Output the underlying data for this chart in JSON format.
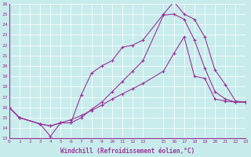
{
  "xlabel": "Windchill (Refroidissement éolien,°C)",
  "background_color": "#c8ecec",
  "line_color": "#993399",
  "grid_color": "#ffffff",
  "xmin": 0,
  "xmax": 23,
  "ymin": 13,
  "ymax": 26,
  "xticks": [
    0,
    1,
    2,
    3,
    4,
    5,
    6,
    7,
    8,
    9,
    10,
    11,
    12,
    13,
    15,
    16,
    17,
    18,
    19,
    20,
    21,
    22,
    23
  ],
  "yticks": [
    13,
    14,
    15,
    16,
    17,
    18,
    19,
    20,
    21,
    22,
    23,
    24,
    25,
    26
  ],
  "curve1_x": [
    0,
    1,
    3,
    4,
    5,
    6,
    7,
    8,
    9,
    10,
    11,
    12,
    13,
    15,
    16,
    17,
    18,
    19,
    20,
    21,
    22,
    23
  ],
  "curve1_y": [
    16.0,
    15.0,
    14.4,
    14.2,
    14.5,
    14.5,
    17.2,
    19.3,
    20.0,
    20.5,
    21.8,
    22.0,
    22.5,
    25.0,
    26.2,
    25.0,
    24.5,
    22.8,
    19.6,
    18.2,
    16.6,
    16.5
  ],
  "curve2_x": [
    0,
    1,
    3,
    4,
    5,
    6,
    7,
    8,
    9,
    10,
    11,
    12,
    13,
    15,
    16,
    17,
    18,
    19,
    20,
    21,
    22,
    23
  ],
  "curve2_y": [
    16.0,
    15.0,
    14.4,
    14.2,
    14.5,
    14.5,
    15.0,
    15.8,
    16.5,
    17.5,
    18.5,
    19.5,
    20.5,
    24.9,
    25.0,
    24.5,
    22.5,
    19.8,
    17.5,
    16.8,
    16.5,
    16.5
  ],
  "curve3_x": [
    0,
    1,
    3,
    4,
    5,
    6,
    7,
    8,
    9,
    10,
    11,
    12,
    13,
    15,
    16,
    17,
    18,
    19,
    20,
    21,
    22,
    23
  ],
  "curve3_y": [
    16.0,
    15.0,
    14.4,
    13.2,
    14.5,
    14.8,
    15.2,
    15.7,
    16.2,
    16.8,
    17.3,
    17.8,
    18.3,
    19.5,
    21.2,
    22.8,
    19.0,
    18.8,
    16.8,
    16.6,
    16.5,
    16.5
  ]
}
